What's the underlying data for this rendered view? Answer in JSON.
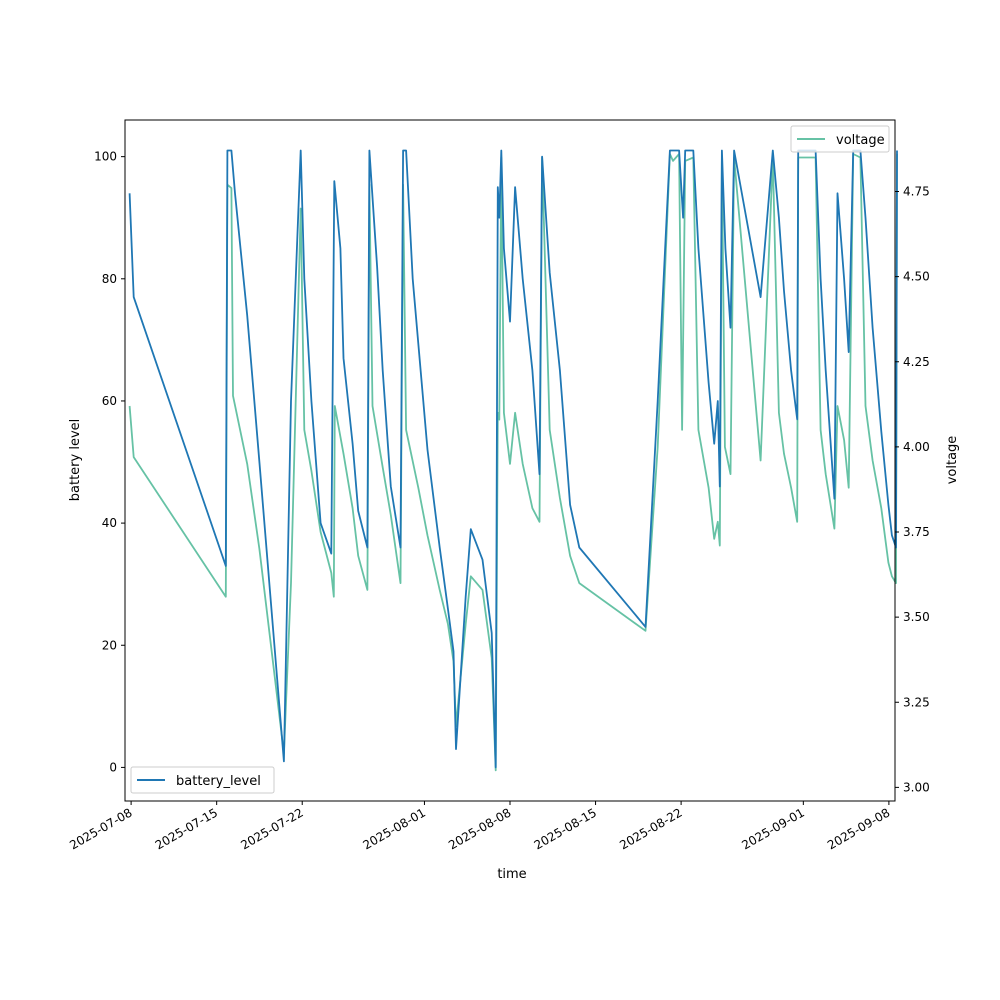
{
  "chart_data": {
    "type": "line",
    "xlabel": "time",
    "ylabel": "battery level",
    "y2label": "voltage",
    "xlim": [
      "2025-07-07T12:00",
      "2025-09-08T12:00"
    ],
    "ylim": [
      -5.5,
      106
    ],
    "y2lim": [
      2.96,
      4.96
    ],
    "grid": false,
    "x_ticks": [
      "2025-07-08",
      "2025-07-15",
      "2025-07-22",
      "2025-08-01",
      "2025-08-08",
      "2025-08-15",
      "2025-08-22",
      "2025-09-01",
      "2025-09-08"
    ],
    "y_ticks": [
      0,
      20,
      40,
      60,
      80,
      100
    ],
    "y2_ticks": [
      "3.00",
      "3.25",
      "3.50",
      "3.75",
      "4.00",
      "4.25",
      "4.50",
      "4.75"
    ],
    "legend_left": {
      "label": "battery_level",
      "placement": "lower left"
    },
    "legend_right": {
      "label": "voltage",
      "placement": "upper right"
    },
    "colors": {
      "battery_level": "#1f77b4",
      "voltage": "#66c2a5"
    },
    "series": [
      {
        "name": "battery_level",
        "axis": "left",
        "points": [
          [
            "2025-07-07T21:00",
            94
          ],
          [
            "2025-07-08T05:00",
            77
          ],
          [
            "2025-07-15T18:00",
            33
          ],
          [
            "2025-07-15T21:00",
            101
          ],
          [
            "2025-07-16T05:00",
            101
          ],
          [
            "2025-07-16T12:00",
            94
          ],
          [
            "2025-07-17T12:00",
            74
          ],
          [
            "2025-07-18T12:00",
            50
          ],
          [
            "2025-07-20T12:00",
            1
          ],
          [
            "2025-07-21T02:00",
            60
          ],
          [
            "2025-07-21T21:00",
            101
          ],
          [
            "2025-07-22T04:00",
            80
          ],
          [
            "2025-07-22T18:00",
            60
          ],
          [
            "2025-07-23T12:00",
            40
          ],
          [
            "2025-07-24T09:00",
            35
          ],
          [
            "2025-07-24T15:00",
            96
          ],
          [
            "2025-07-25T03:00",
            85
          ],
          [
            "2025-07-25T09:00",
            67
          ],
          [
            "2025-07-26T03:00",
            53
          ],
          [
            "2025-07-26T14:00",
            42
          ],
          [
            "2025-07-27T08:00",
            36
          ],
          [
            "2025-07-27T12:00",
            101
          ],
          [
            "2025-07-28T03:00",
            82
          ],
          [
            "2025-07-28T14:00",
            65
          ],
          [
            "2025-07-29T06:00",
            46
          ],
          [
            "2025-07-30T01:00",
            36
          ],
          [
            "2025-07-30T06:00",
            101
          ],
          [
            "2025-07-30T12:00",
            101
          ],
          [
            "2025-07-31T01:00",
            80
          ],
          [
            "2025-08-01T06:00",
            52
          ],
          [
            "2025-08-02T06:00",
            36
          ],
          [
            "2025-08-02T22:00",
            26
          ],
          [
            "2025-08-03T09:00",
            19
          ],
          [
            "2025-08-03T14:00",
            3
          ],
          [
            "2025-08-04T09:00",
            28
          ],
          [
            "2025-08-04T19:00",
            39
          ],
          [
            "2025-08-05T18:00",
            34
          ],
          [
            "2025-08-06T12:00",
            22
          ],
          [
            "2025-08-06T20:00",
            0
          ],
          [
            "2025-08-07T00:00",
            95
          ],
          [
            "2025-08-07T03:00",
            90
          ],
          [
            "2025-08-07T07:00",
            101
          ],
          [
            "2025-08-07T12:00",
            85
          ],
          [
            "2025-08-08T00:00",
            73
          ],
          [
            "2025-08-08T10:00",
            95
          ],
          [
            "2025-08-09T01:00",
            80
          ],
          [
            "2025-08-09T20:00",
            65
          ],
          [
            "2025-08-10T10:00",
            48
          ],
          [
            "2025-08-10T15:00",
            100
          ],
          [
            "2025-08-11T06:00",
            81
          ],
          [
            "2025-08-12T02:00",
            65
          ],
          [
            "2025-08-12T22:00",
            43
          ],
          [
            "2025-08-13T16:00",
            36
          ],
          [
            "2025-08-19T02:00",
            23
          ],
          [
            "2025-08-20T02:00",
            60
          ],
          [
            "2025-08-21T02:00",
            101
          ],
          [
            "2025-08-21T20:00",
            101
          ],
          [
            "2025-08-22T04:00",
            90
          ],
          [
            "2025-08-22T08:00",
            101
          ],
          [
            "2025-08-23T00:00",
            101
          ],
          [
            "2025-08-23T10:00",
            85
          ],
          [
            "2025-08-24T06:00",
            63
          ],
          [
            "2025-08-24T17:00",
            53
          ],
          [
            "2025-08-25T00:00",
            60
          ],
          [
            "2025-08-25T04:00",
            46
          ],
          [
            "2025-08-25T08:00",
            101
          ],
          [
            "2025-08-25T15:00",
            85
          ],
          [
            "2025-08-26T01:00",
            72
          ],
          [
            "2025-08-26T08:00",
            101
          ],
          [
            "2025-08-28T12:00",
            77
          ],
          [
            "2025-08-29T12:00",
            101
          ],
          [
            "2025-08-30T00:00",
            90
          ],
          [
            "2025-08-30T10:00",
            78
          ],
          [
            "2025-08-31T00:00",
            65
          ],
          [
            "2025-08-31T12:00",
            57
          ],
          [
            "2025-08-31T14:00",
            101
          ],
          [
            "2025-09-02T00:00",
            101
          ],
          [
            "2025-09-02T10:00",
            80
          ],
          [
            "2025-09-02T20:00",
            65
          ],
          [
            "2025-09-03T13:00",
            44
          ],
          [
            "2025-09-03T19:00",
            94
          ],
          [
            "2025-09-04T08:00",
            80
          ],
          [
            "2025-09-04T17:00",
            68
          ],
          [
            "2025-09-05T02:00",
            101
          ],
          [
            "2025-09-05T16:00",
            101
          ],
          [
            "2025-09-06T02:00",
            90
          ],
          [
            "2025-09-06T16:00",
            72
          ],
          [
            "2025-09-07T09:00",
            55
          ],
          [
            "2025-09-07T23:00",
            43
          ],
          [
            "2025-09-08T06:00",
            38
          ],
          [
            "2025-09-08T14:00",
            36
          ],
          [
            "2025-09-08T16:00",
            101
          ]
        ]
      },
      {
        "name": "voltage",
        "axis": "right",
        "points": [
          [
            "2025-07-07T21:00",
            4.12
          ],
          [
            "2025-07-08T05:00",
            3.97
          ],
          [
            "2025-07-15T18:00",
            3.56
          ],
          [
            "2025-07-15T21:00",
            4.77
          ],
          [
            "2025-07-16T05:00",
            4.76
          ],
          [
            "2025-07-16T08:00",
            4.15
          ],
          [
            "2025-07-17T12:00",
            3.95
          ],
          [
            "2025-07-18T12:00",
            3.7
          ],
          [
            "2025-07-20T12:00",
            3.1
          ],
          [
            "2025-07-21T02:00",
            3.6
          ],
          [
            "2025-07-21T21:00",
            4.7
          ],
          [
            "2025-07-22T04:00",
            4.05
          ],
          [
            "2025-07-22T18:00",
            3.93
          ],
          [
            "2025-07-23T12:00",
            3.75
          ],
          [
            "2025-07-24T09:00",
            3.63
          ],
          [
            "2025-07-24T14:00",
            3.56
          ],
          [
            "2025-07-24T16:00",
            4.12
          ],
          [
            "2025-07-25T09:00",
            3.98
          ],
          [
            "2025-07-26T03:00",
            3.82
          ],
          [
            "2025-07-26T14:00",
            3.68
          ],
          [
            "2025-07-27T08:00",
            3.58
          ],
          [
            "2025-07-27T12:00",
            4.77
          ],
          [
            "2025-07-27T18:00",
            4.12
          ],
          [
            "2025-07-28T14:00",
            3.94
          ],
          [
            "2025-07-29T06:00",
            3.8
          ],
          [
            "2025-07-30T01:00",
            3.6
          ],
          [
            "2025-07-30T06:00",
            4.77
          ],
          [
            "2025-07-30T12:00",
            4.05
          ],
          [
            "2025-07-31T12:00",
            3.88
          ],
          [
            "2025-08-01T06:00",
            3.74
          ],
          [
            "2025-08-02T06:00",
            3.58
          ],
          [
            "2025-08-02T22:00",
            3.48
          ],
          [
            "2025-08-03T09:00",
            3.37
          ],
          [
            "2025-08-03T14:00",
            3.18
          ],
          [
            "2025-08-04T09:00",
            3.48
          ],
          [
            "2025-08-04T19:00",
            3.62
          ],
          [
            "2025-08-05T18:00",
            3.58
          ],
          [
            "2025-08-06T12:00",
            3.38
          ],
          [
            "2025-08-06T20:00",
            3.05
          ],
          [
            "2025-08-07T00:00",
            4.1
          ],
          [
            "2025-08-07T03:00",
            4.08
          ],
          [
            "2025-08-07T07:00",
            4.85
          ],
          [
            "2025-08-07T12:00",
            4.1
          ],
          [
            "2025-08-08T00:00",
            3.95
          ],
          [
            "2025-08-08T10:00",
            4.1
          ],
          [
            "2025-08-09T01:00",
            3.95
          ],
          [
            "2025-08-09T20:00",
            3.82
          ],
          [
            "2025-08-10T10:00",
            3.78
          ],
          [
            "2025-08-10T15:00",
            4.85
          ],
          [
            "2025-08-11T06:00",
            4.05
          ],
          [
            "2025-08-12T02:00",
            3.85
          ],
          [
            "2025-08-12T22:00",
            3.68
          ],
          [
            "2025-08-13T16:00",
            3.6
          ],
          [
            "2025-08-19T02:00",
            3.46
          ],
          [
            "2025-08-20T02:00",
            4.0
          ],
          [
            "2025-08-21T02:00",
            4.86
          ],
          [
            "2025-08-21T08:00",
            4.84
          ],
          [
            "2025-08-21T20:00",
            4.86
          ],
          [
            "2025-08-22T02:00",
            4.05
          ],
          [
            "2025-08-22T08:00",
            4.84
          ],
          [
            "2025-08-23T00:00",
            4.85
          ],
          [
            "2025-08-23T10:00",
            4.05
          ],
          [
            "2025-08-24T06:00",
            3.88
          ],
          [
            "2025-08-24T17:00",
            3.73
          ],
          [
            "2025-08-25T00:00",
            3.78
          ],
          [
            "2025-08-25T04:00",
            3.71
          ],
          [
            "2025-08-25T06:00",
            4.23
          ],
          [
            "2025-08-25T08:00",
            4.85
          ],
          [
            "2025-08-25T14:00",
            4.0
          ],
          [
            "2025-08-26T01:00",
            3.92
          ],
          [
            "2025-08-26T08:00",
            4.85
          ],
          [
            "2025-08-28T12:00",
            3.96
          ],
          [
            "2025-08-29T12:00",
            4.85
          ],
          [
            "2025-08-30T00:00",
            4.1
          ],
          [
            "2025-08-30T10:00",
            3.98
          ],
          [
            "2025-08-31T00:00",
            3.88
          ],
          [
            "2025-08-31T12:00",
            3.78
          ],
          [
            "2025-08-31T14:00",
            4.85
          ],
          [
            "2025-09-02T00:00",
            4.85
          ],
          [
            "2025-09-02T10:00",
            4.05
          ],
          [
            "2025-09-02T20:00",
            3.92
          ],
          [
            "2025-09-03T13:00",
            3.76
          ],
          [
            "2025-09-03T19:00",
            4.12
          ],
          [
            "2025-09-04T08:00",
            4.02
          ],
          [
            "2025-09-04T17:00",
            3.88
          ],
          [
            "2025-09-05T02:00",
            4.86
          ],
          [
            "2025-09-05T16:00",
            4.85
          ],
          [
            "2025-09-06T02:00",
            4.12
          ],
          [
            "2025-09-06T16:00",
            3.96
          ],
          [
            "2025-09-07T09:00",
            3.82
          ],
          [
            "2025-09-07T23:00",
            3.66
          ],
          [
            "2025-09-08T06:00",
            3.62
          ],
          [
            "2025-09-08T14:00",
            3.6
          ],
          [
            "2025-09-08T16:00",
            4.86
          ]
        ]
      }
    ]
  }
}
